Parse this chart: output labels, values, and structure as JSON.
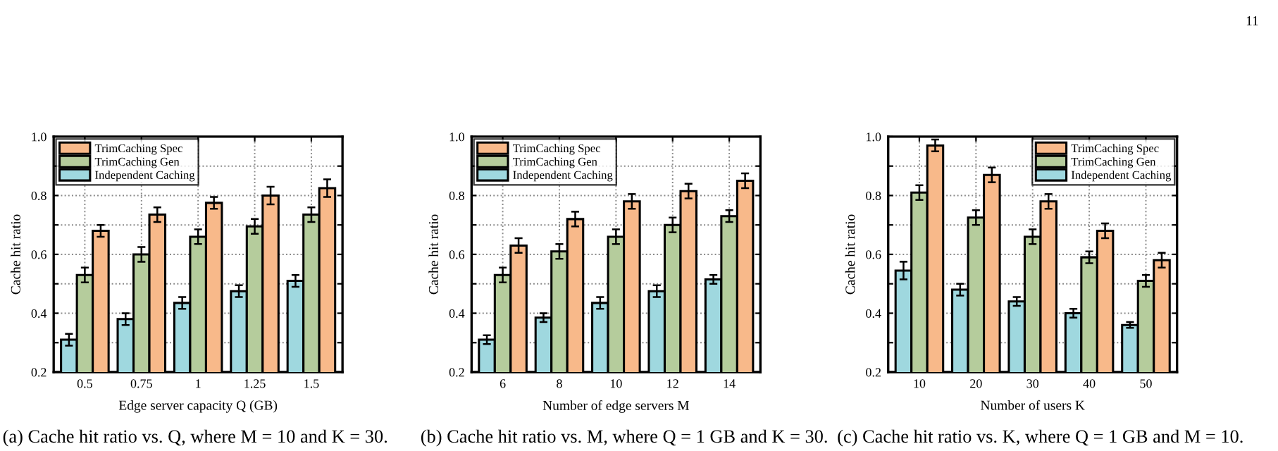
{
  "chart_data": [
    {
      "type": "bar",
      "xlabel": "Edge server capacity Q (GB)",
      "ylabel": "Cache hit ratio",
      "categories": [
        "0.5",
        "0.75",
        "1",
        "1.25",
        "1.5"
      ],
      "ylim": [
        0.2,
        1.0
      ],
      "yticks": [
        0.2,
        {
          "value": 0.3,
          "label": null
        },
        0.4,
        {
          "value": 0.5,
          "label": null
        },
        0.6,
        {
          "value": 0.7,
          "label": null
        },
        0.8,
        {
          "value": 0.9,
          "label": null
        },
        {
          "value": 1.0,
          "label": "1.0"
        }
      ],
      "grid": true,
      "legend": "top left",
      "series": [
        {
          "name": "Independent Caching",
          "color": "#9fd8df",
          "values": [
            0.31,
            0.38,
            0.435,
            0.475,
            0.51
          ],
          "errors": [
            0.02,
            0.02,
            0.02,
            0.02,
            0.02
          ]
        },
        {
          "name": "TrimCaching Gen",
          "color": "#b5cc9c",
          "values": [
            0.53,
            0.6,
            0.66,
            0.695,
            0.735
          ],
          "errors": [
            0.025,
            0.025,
            0.025,
            0.025,
            0.025
          ]
        },
        {
          "name": "TrimCaching Spec",
          "color": "#f8b98a",
          "values": [
            0.68,
            0.735,
            0.775,
            0.8,
            0.825
          ],
          "errors": [
            0.02,
            0.025,
            0.02,
            0.03,
            0.03
          ]
        }
      ],
      "annotations": [
        "(a) Cache hit ratio vs. Q, where M = 10 and K = 30."
      ]
    },
    {
      "type": "bar",
      "xlabel": "Number of edge servers M",
      "ylabel": "Cache hit ratio",
      "categories": [
        "6",
        "8",
        "10",
        "12",
        "14"
      ],
      "ylim": [
        0.2,
        1.0
      ],
      "yticks": [
        0.2,
        {
          "value": 0.3,
          "label": null
        },
        0.4,
        {
          "value": 0.5,
          "label": null
        },
        0.6,
        {
          "value": 0.7,
          "label": null
        },
        0.8,
        {
          "value": 0.9,
          "label": null
        },
        {
          "value": 1.0,
          "label": "1.0"
        }
      ],
      "grid": true,
      "legend": "top left",
      "series": [
        {
          "name": "Independent Caching",
          "color": "#9fd8df",
          "values": [
            0.31,
            0.385,
            0.435,
            0.475,
            0.515
          ],
          "errors": [
            0.015,
            0.015,
            0.02,
            0.02,
            0.015
          ]
        },
        {
          "name": "TrimCaching Gen",
          "color": "#b5cc9c",
          "values": [
            0.53,
            0.61,
            0.66,
            0.7,
            0.73
          ],
          "errors": [
            0.025,
            0.025,
            0.025,
            0.025,
            0.02
          ]
        },
        {
          "name": "TrimCaching Spec",
          "color": "#f8b98a",
          "values": [
            0.63,
            0.72,
            0.78,
            0.815,
            0.85
          ],
          "errors": [
            0.025,
            0.025,
            0.025,
            0.025,
            0.025
          ]
        }
      ],
      "annotations": [
        "(b) Cache hit ratio vs. M, where Q = 1 GB and K = 30."
      ]
    },
    {
      "type": "bar",
      "xlabel": "Number of users K",
      "ylabel": "Cache hit ratio",
      "categories": [
        "10",
        "20",
        "30",
        "40",
        "50"
      ],
      "ylim": [
        0.2,
        1.0
      ],
      "yticks": [
        0.2,
        {
          "value": 0.3,
          "label": null
        },
        0.4,
        {
          "value": 0.5,
          "label": null
        },
        0.6,
        {
          "value": 0.7,
          "label": null
        },
        0.8,
        {
          "value": 0.9,
          "label": null
        },
        {
          "value": 1.0,
          "label": "1.0"
        }
      ],
      "grid": true,
      "legend": "top right",
      "series": [
        {
          "name": "Independent Caching",
          "color": "#9fd8df",
          "values": [
            0.545,
            0.48,
            0.44,
            0.4,
            0.36
          ],
          "errors": [
            0.03,
            0.02,
            0.015,
            0.015,
            0.01
          ]
        },
        {
          "name": "TrimCaching Gen",
          "color": "#b5cc9c",
          "values": [
            0.81,
            0.725,
            0.66,
            0.59,
            0.51
          ],
          "errors": [
            0.025,
            0.025,
            0.025,
            0.02,
            0.02
          ]
        },
        {
          "name": "TrimCaching Spec",
          "color": "#f8b98a",
          "values": [
            0.97,
            0.87,
            0.78,
            0.68,
            0.58
          ],
          "errors": [
            0.02,
            0.025,
            0.025,
            0.025,
            0.025
          ]
        }
      ],
      "annotations": [
        "(c) Cache hit ratio vs. K, where Q = 1 GB and M = 10.",
        "11"
      ]
    }
  ]
}
